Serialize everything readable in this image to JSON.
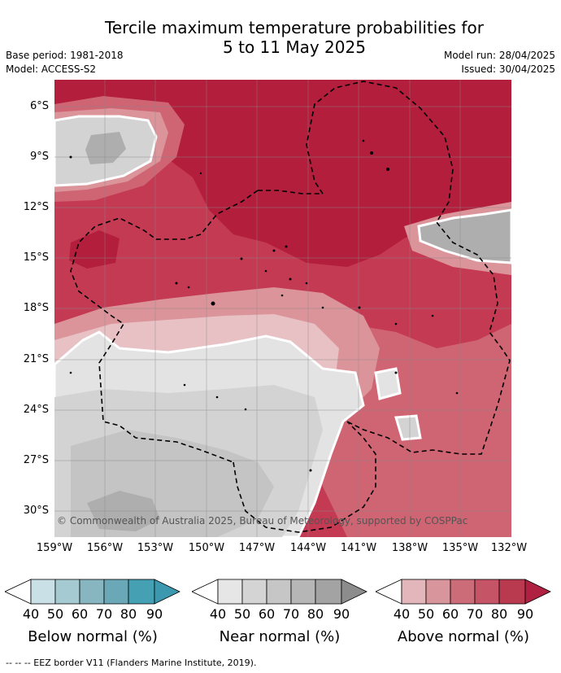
{
  "header": {
    "title_line1": "Tercile maximum temperature probabilities for",
    "title_line2": "5 to 11 May 2025",
    "base_period": "Base period: 1981-2018",
    "model": "Model: ACCESS-S2",
    "model_run": "Model run: 28/04/2025",
    "issued": "Issued: 30/04/2025"
  },
  "map": {
    "copyright": "© Commonwealth of Australia 2025, Bureau of Meteorology, supported by COSPPac",
    "lat_labels": [
      "6°S",
      "9°S",
      "12°S",
      "15°S",
      "18°S",
      "21°S",
      "24°S",
      "27°S",
      "30°S"
    ],
    "lon_labels": [
      "159°W",
      "156°W",
      "153°W",
      "150°W",
      "147°W",
      "144°W",
      "141°W",
      "138°W",
      "135°W",
      "132°W"
    ],
    "colors": {
      "above_80_90": "#b21e3c",
      "above_70_80": "#c43a53",
      "above_60_70": "#cf6473",
      "above_50_60": "#dc949b",
      "above_40_50": "#e8c1c5",
      "near_40_50": "#e3e3e3",
      "near_50_60": "#d3d3d3",
      "near_60_70": "#c4c4c4",
      "near_70_80": "#aeaeae"
    }
  },
  "legends": [
    {
      "label": "Below normal (%)",
      "ticks": [
        "40",
        "50",
        "60",
        "70",
        "80",
        "90"
      ],
      "colors": [
        "#c8e0e6",
        "#a6cad2",
        "#88b6c0",
        "#6aa8b8",
        "#46a0b3",
        "#3b98ae"
      ]
    },
    {
      "label": "Near normal (%)",
      "ticks": [
        "40",
        "50",
        "60",
        "70",
        "80",
        "90"
      ],
      "colors": [
        "#e6e6e6",
        "#d4d4d4",
        "#c6c6c6",
        "#b6b6b6",
        "#a3a3a3",
        "#8c8c8c"
      ]
    },
    {
      "label": "Above normal (%)",
      "ticks": [
        "40",
        "50",
        "60",
        "70",
        "80",
        "90"
      ],
      "colors": [
        "#e3b6bc",
        "#d8959c",
        "#cc6c79",
        "#c45466",
        "#b93a4f",
        "#b02040"
      ]
    }
  ],
  "footnote": "--  --  -- EEZ border V11 (Flanders Marine Institute, 2019)."
}
